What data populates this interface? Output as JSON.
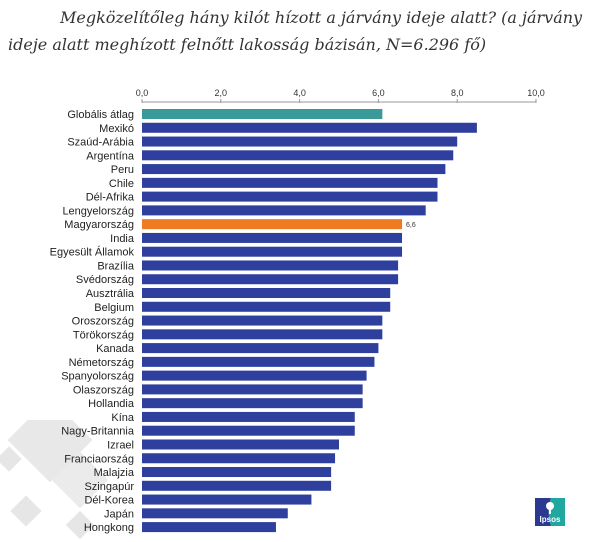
{
  "title": {
    "line1": "Megközelítőleg hány kilót hízott a járvány ideje alatt? (a járvány",
    "line2": "ideje alatt meghízott felnőtt lakosság bázisán, N=6.296 fő)"
  },
  "logo": {
    "text": "Ipsos",
    "colors": [
      "#2b3990",
      "#1fa7a0"
    ]
  },
  "chart_data": {
    "type": "bar",
    "orientation": "horizontal",
    "title": "Megközelítőleg hány kilót hízott a járvány ideje alatt? (a járvány ideje alatt meghízott felnőtt lakosság bázisán, N=6.296 fő)",
    "xlabel": "",
    "ylabel": "",
    "xlim": [
      0,
      10
    ],
    "xticks": [
      "0,0",
      "2,0",
      "4,0",
      "6,0",
      "8,0",
      "10,0"
    ],
    "xtick_values": [
      0,
      2,
      4,
      6,
      8,
      10
    ],
    "axis_position": "top",
    "grid": false,
    "legend": "none",
    "colors": {
      "default": "#2e3f9e",
      "global": "#3a9a9a",
      "highlight": "#ee7b22"
    },
    "categories": [
      "Globális átlag",
      "Mexikó",
      "Szaúd-Arábia",
      "Argentína",
      "Peru",
      "Chile",
      "Dél-Afrika",
      "Lengyelország",
      "Magyarország",
      "India",
      "Egyesült Államok",
      "Brazília",
      "Svédország",
      "Ausztrália",
      "Belgium",
      "Oroszország",
      "Törökország",
      "Kanada",
      "Németország",
      "Spanyolország",
      "Olaszország",
      "Hollandia",
      "Kína",
      "Nagy-Britannia",
      "Izrael",
      "Franciaország",
      "Malajzia",
      "Szingapúr",
      "Dél-Korea",
      "Japán",
      "Hongkong"
    ],
    "values": [
      6.1,
      8.5,
      8.0,
      7.9,
      7.7,
      7.5,
      7.5,
      7.2,
      6.6,
      6.6,
      6.6,
      6.5,
      6.5,
      6.3,
      6.3,
      6.1,
      6.1,
      6.0,
      5.9,
      5.7,
      5.6,
      5.6,
      5.4,
      5.4,
      5.0,
      4.9,
      4.8,
      4.8,
      4.3,
      3.7,
      3.4
    ],
    "bar_roles": [
      "global",
      "default",
      "default",
      "default",
      "default",
      "default",
      "default",
      "default",
      "highlight",
      "default",
      "default",
      "default",
      "default",
      "default",
      "default",
      "default",
      "default",
      "default",
      "default",
      "default",
      "default",
      "default",
      "default",
      "default",
      "default",
      "default",
      "default",
      "default",
      "default",
      "default",
      "default"
    ],
    "data_labels": [
      {
        "category": "Magyarország",
        "text": "6,6"
      }
    ]
  }
}
